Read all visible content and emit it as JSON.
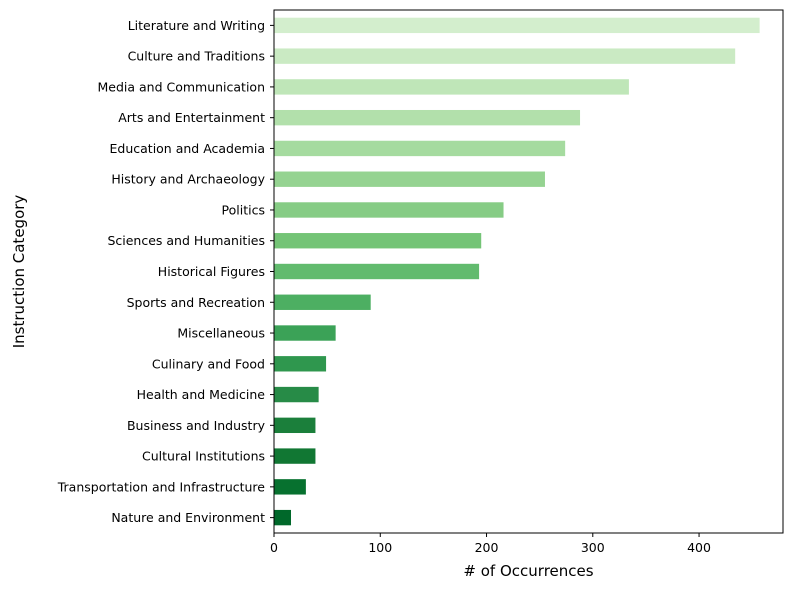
{
  "chart_data": {
    "type": "bar",
    "orientation": "horizontal",
    "categories": [
      "Literature and Writing",
      "Culture and Traditions",
      "Media and Communication",
      "Arts and Entertainment",
      "Education and Academia",
      "History and Archaeology",
      "Politics",
      "Sciences and Humanities",
      "Historical Figures",
      "Sports and Recreation",
      "Miscellaneous",
      "Culinary and Food",
      "Health and Medicine",
      "Business and Industry",
      "Cultural Institutions",
      "Transportation and Infrastructure",
      "Nature and Environment"
    ],
    "values": [
      457,
      434,
      334,
      288,
      274,
      255,
      216,
      195,
      193,
      91,
      58,
      49,
      42,
      39,
      39,
      30,
      16
    ],
    "colors": [
      "#d3eecd",
      "#caeac3",
      "#bfe6b8",
      "#b2e0ab",
      "#a5db9f",
      "#95d391",
      "#86cc85",
      "#74c476",
      "#62bb6e",
      "#4daf62",
      "#3ba257",
      "#2f974e",
      "#278b47",
      "#1b7f3b",
      "#117733",
      "#07712f",
      "#00682a"
    ],
    "title": "",
    "xlabel": "# of Occurrences",
    "ylabel": "Instruction Category",
    "xlim": [
      0,
      479
    ],
    "xticks": [
      0,
      100,
      200,
      300,
      400
    ],
    "grid": false,
    "legend": "none"
  }
}
